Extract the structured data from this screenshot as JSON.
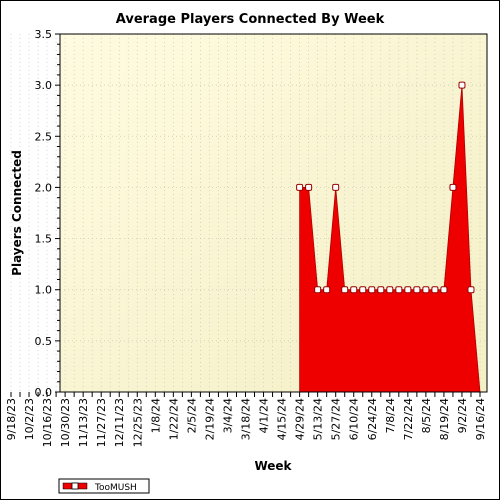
{
  "chart_data": {
    "type": "area",
    "title": "Average Players Connected By Week",
    "xlabel": "Week",
    "ylabel": "Players Connected",
    "ylim": [
      0,
      3.5
    ],
    "y_ticks": [
      "0.0",
      "0.5",
      "1.0",
      "1.5",
      "2.0",
      "2.5",
      "3.0",
      "3.5"
    ],
    "x_start": "2023-09-18",
    "x_end": "2024-09-16",
    "x_tick_labels": [
      "9/18/23",
      "10/2/23",
      "10/16/23",
      "10/30/23",
      "11/13/23",
      "11/27/23",
      "12/11/23",
      "12/25/23",
      "1/8/24",
      "1/22/24",
      "2/5/24",
      "2/19/24",
      "3/4/24",
      "3/18/24",
      "4/1/24",
      "4/15/24",
      "4/29/24",
      "5/13/24",
      "5/27/24",
      "6/10/24",
      "6/24/24",
      "7/8/24",
      "7/22/24",
      "8/5/24",
      "8/19/24",
      "9/2/24",
      "9/16/24"
    ],
    "grid": true,
    "legend_position": "bottom-left",
    "colors": {
      "fill": "#ee0000",
      "marker_edge": "#990000",
      "plot_bg": "#fbf8d8"
    },
    "series": [
      {
        "name": "TooMUSH",
        "x": [
          "2024-04-29",
          "2024-05-06",
          "2024-05-13",
          "2024-05-20",
          "2024-05-27",
          "2024-06-03",
          "2024-06-10",
          "2024-06-17",
          "2024-06-24",
          "2024-07-01",
          "2024-07-08",
          "2024-07-15",
          "2024-07-22",
          "2024-07-29",
          "2024-08-05",
          "2024-08-12",
          "2024-08-19",
          "2024-08-26",
          "2024-09-02",
          "2024-09-09",
          "2024-09-16"
        ],
        "values": [
          2,
          2,
          1,
          1,
          2,
          1,
          1,
          1,
          1,
          1,
          1,
          1,
          1,
          1,
          1,
          1,
          1,
          2,
          3,
          1,
          0
        ]
      }
    ]
  }
}
